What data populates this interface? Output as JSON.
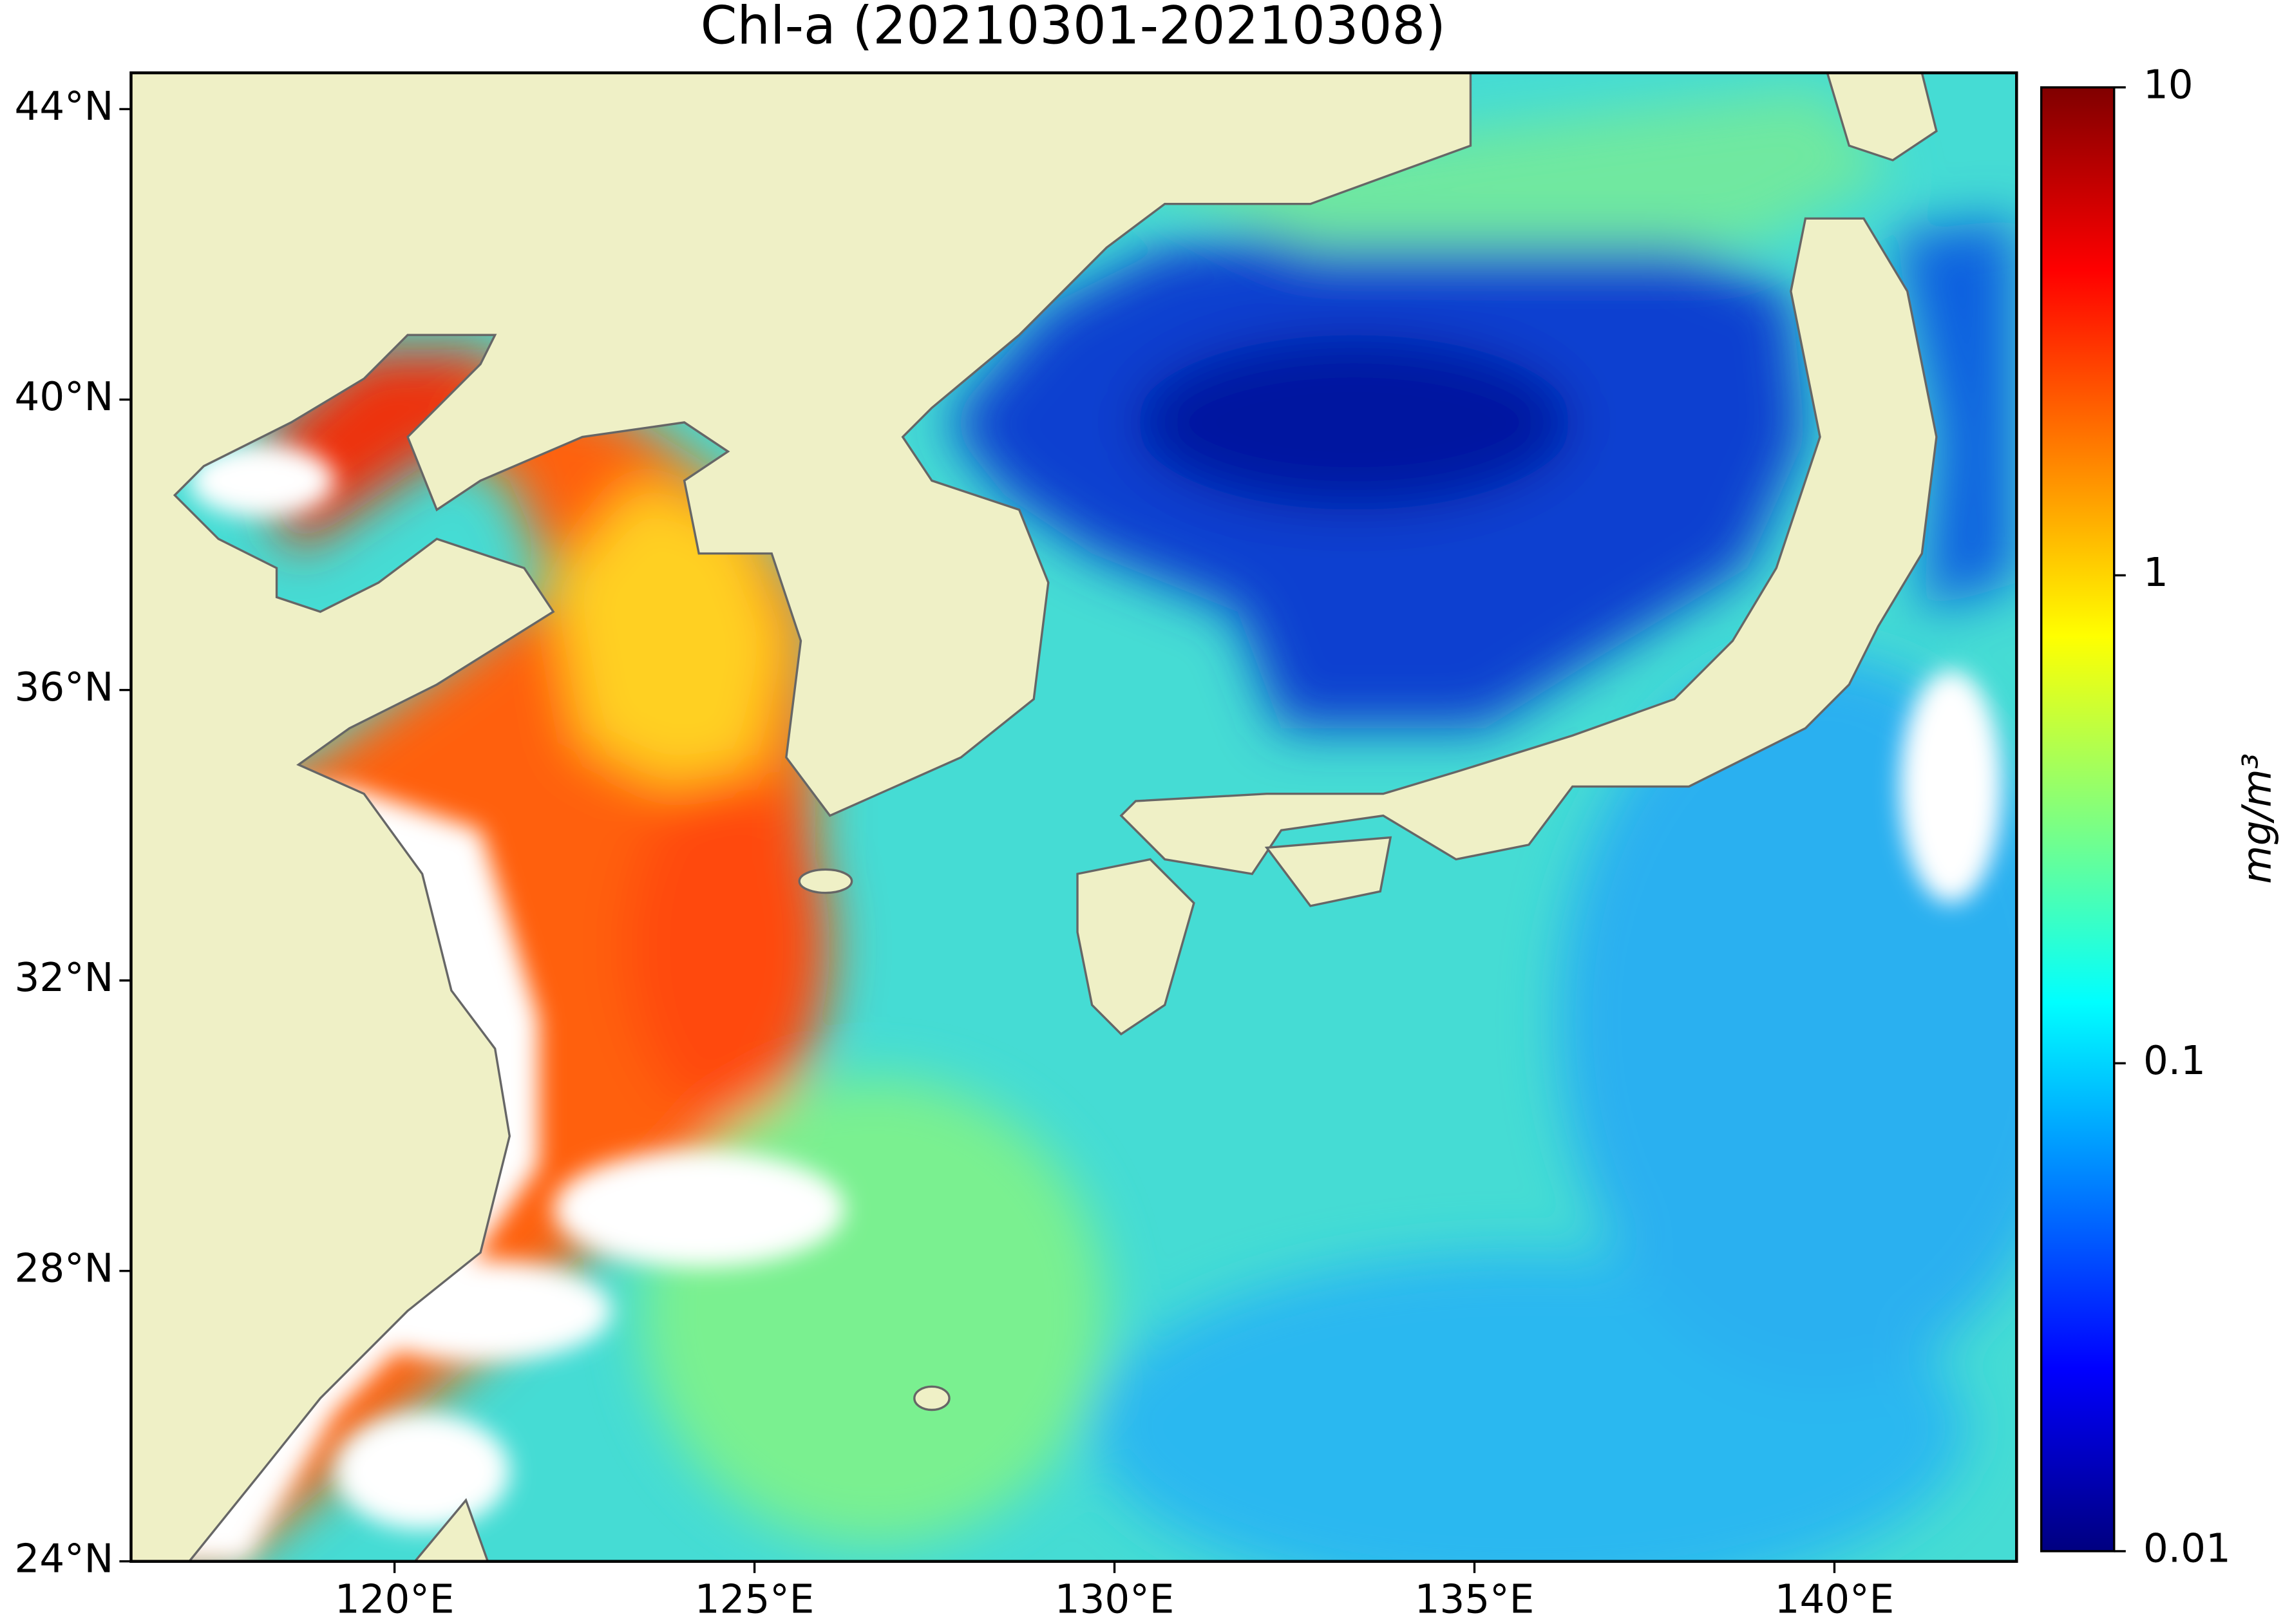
{
  "title": "Chl-a (20210301-20210308)",
  "map": {
    "xlim": [
      116.34,
      142.53
    ],
    "ylim": [
      24,
      44.5
    ],
    "xticks": [
      {
        "value": 120,
        "label": "120°E"
      },
      {
        "value": 125,
        "label": "125°E"
      },
      {
        "value": 130,
        "label": "130°E"
      },
      {
        "value": 135,
        "label": "135°E"
      },
      {
        "value": 140,
        "label": "140°E"
      }
    ],
    "yticks": [
      {
        "value": 24,
        "label": "24°N"
      },
      {
        "value": 28,
        "label": "28°N"
      },
      {
        "value": 32,
        "label": "32°N"
      },
      {
        "value": 36,
        "label": "36°N"
      },
      {
        "value": 40,
        "label": "40°N"
      },
      {
        "value": 44,
        "label": "44°N"
      }
    ]
  },
  "colorbar": {
    "scale": "log",
    "colormap": "jet",
    "ylim": [
      0.01,
      10
    ],
    "yticks": [
      0.01,
      0.1,
      1,
      10
    ],
    "label": "mg/m³"
  }
}
